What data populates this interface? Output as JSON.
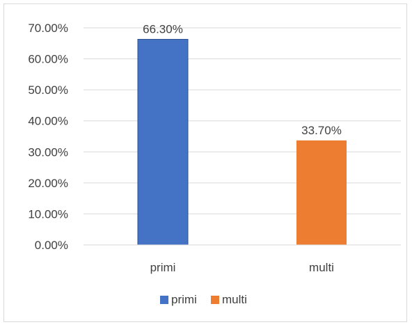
{
  "chart_data": {
    "type": "bar",
    "categories": [
      "primi",
      "multi"
    ],
    "values": [
      66.3,
      33.7
    ],
    "data_labels": [
      "66.30%",
      "33.70%"
    ],
    "colors": [
      "#4472c4",
      "#ed7d31"
    ],
    "ylim": [
      0,
      70
    ],
    "yticks": [
      0,
      10,
      20,
      30,
      40,
      50,
      60,
      70
    ],
    "ytick_labels": [
      "0.00%",
      "10.00%",
      "20.00%",
      "30.00%",
      "40.00%",
      "50.00%",
      "60.00%",
      "70.00%"
    ],
    "grid": true,
    "legend": {
      "position": "bottom",
      "entries": [
        "primi",
        "multi"
      ]
    }
  }
}
